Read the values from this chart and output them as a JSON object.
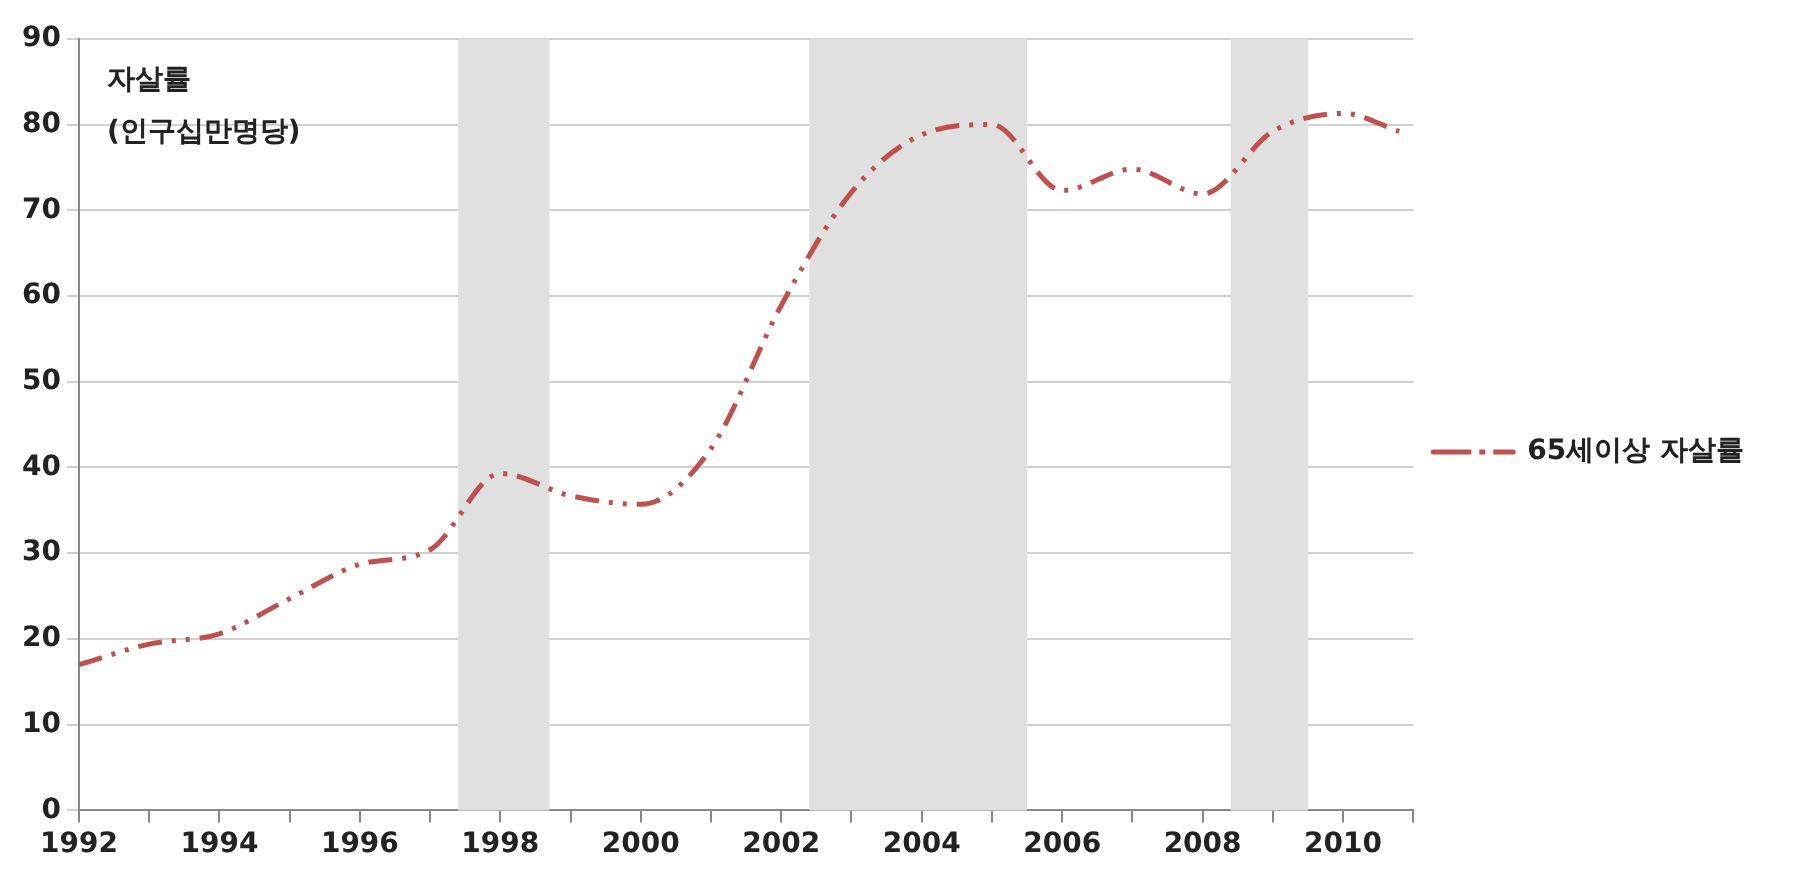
{
  "chart_data": {
    "type": "line",
    "ylabel": "자살률 (인구십만명당)",
    "x": [
      1992,
      1993,
      1994,
      1995,
      1996,
      1997,
      1998,
      1999,
      2000,
      2001,
      2002,
      2003,
      2004,
      2005,
      2006,
      2007,
      2008,
      2009,
      2010,
      2010.8
    ],
    "series": [
      {
        "name": "65세이상 자살률",
        "color": "#c0504d",
        "values": [
          17,
          19.4,
          20.6,
          24.7,
          28.7,
          30.4,
          39.3,
          36.7,
          35.7,
          42.2,
          58.9,
          72.1,
          78.8,
          80,
          72.3,
          74.8,
          71.9,
          79.2,
          81.3,
          79.2
        ]
      }
    ],
    "xlim": [
      1992,
      2011
    ],
    "xticks": [
      1992,
      {
        "value": 1993,
        "label": null
      },
      1994,
      {
        "value": 1995,
        "label": null
      },
      1996,
      {
        "value": 1997,
        "label": null
      },
      1998,
      {
        "value": 1999,
        "label": null
      },
      2000,
      {
        "value": 2001,
        "label": null
      },
      2002,
      {
        "value": 2003,
        "label": null
      },
      2004,
      {
        "value": 2005,
        "label": null
      },
      2006,
      {
        "value": 2007,
        "label": null
      },
      2008,
      {
        "value": 2009,
        "label": null
      },
      2010,
      {
        "value": 2011,
        "label": null
      }
    ],
    "ylim": [
      0,
      90
    ],
    "yticks": [
      0,
      10,
      20,
      30,
      40,
      50,
      60,
      70,
      80,
      90
    ],
    "bands": [
      {
        "axis": "x",
        "from": 1997.4,
        "to": 1998.7,
        "color": "#e0e0e0"
      },
      {
        "axis": "x",
        "from": 2002.4,
        "to": 2005.5,
        "color": "#e0e0e0"
      },
      {
        "axis": "x",
        "from": 2008.4,
        "to": 2009.5,
        "color": "#e0e0e0"
      }
    ],
    "grid": "y",
    "legend": "right",
    "marker": "none",
    "line_style": "dashed"
  }
}
